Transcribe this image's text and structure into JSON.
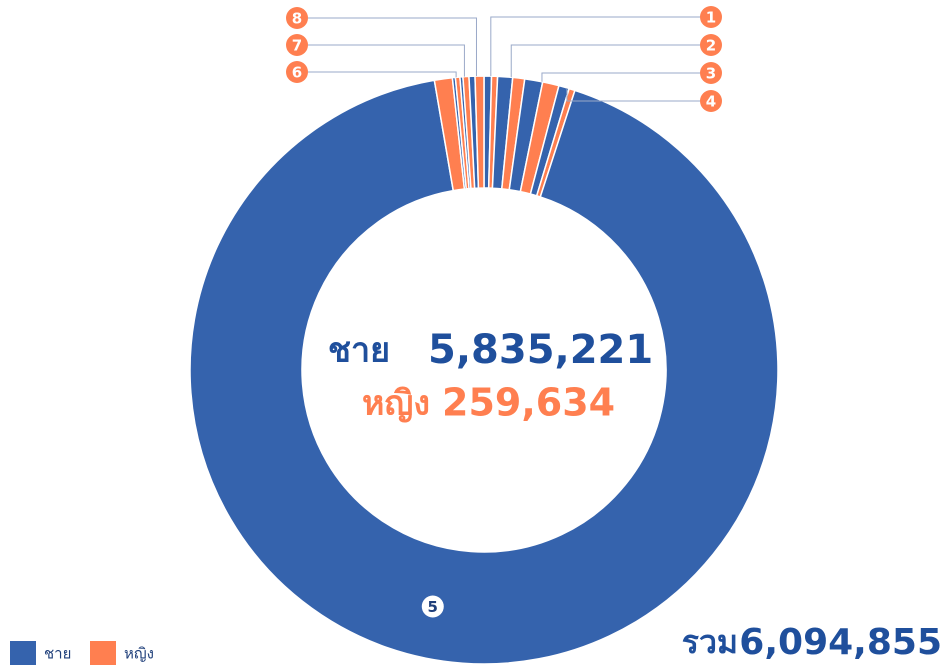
{
  "chart_data": {
    "type": "donut",
    "categories": [
      "1",
      "2",
      "3",
      "4",
      "5",
      "6",
      "7",
      "8"
    ],
    "series": [
      {
        "name": "ชาย",
        "color": "#3563ad",
        "values": [
          25000,
          50000,
          60000,
          35000,
          5625221,
          10000,
          10000,
          20000
        ]
      },
      {
        "name": "หญิง",
        "color": "#ff7f50",
        "values": [
          20000,
          40000,
          55000,
          20000,
          60000,
          15000,
          20000,
          29634
        ]
      }
    ],
    "center": [
      {
        "label": "ชาย",
        "value": "5,835,221"
      },
      {
        "label": "หญิง",
        "value": "259,634"
      }
    ],
    "total": {
      "label": "รวม",
      "value": "6,094,855"
    }
  }
}
